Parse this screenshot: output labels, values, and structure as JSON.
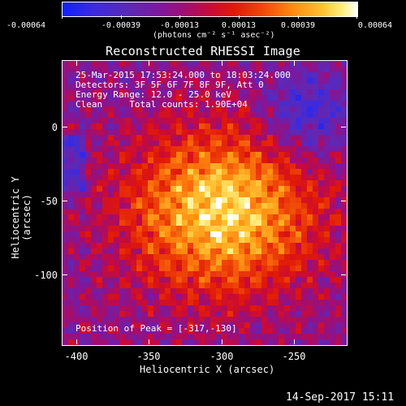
{
  "colorbar": {
    "tick_labels": [
      "-0.00064",
      "-0.00039",
      "-0.00013",
      "0.00013",
      "0.00039",
      "0.00064"
    ],
    "unit_label": "(photons cm⁻² s⁻¹ asec⁻²)"
  },
  "chart_data": {
    "type": "heatmap",
    "title": "Reconstructed RHESSI Image",
    "xlabel": "Heliocentric X (arcsec)",
    "ylabel": "Heliocentric Y (arcsec)",
    "xlim": [
      -410,
      -215
    ],
    "ylim": [
      -150,
      25
    ],
    "xticks": [
      -400,
      -350,
      -300,
      -250
    ],
    "yticks": [
      0,
      -50,
      -100
    ],
    "color_range": [
      -0.00064,
      0.00064
    ],
    "colormap": "blue-purple-red-orange-yellow-white",
    "peak_position": [
      -317,
      -130
    ],
    "grid": false
  },
  "annotations": {
    "time": "25-Mar-2015 17:53:24.000 to 18:03:24.000",
    "detectors": "Detectors: 3F 5F 6F 7F 8F 9F, Att 0",
    "energy": "Energy Range: 12.0 - 25.0 keV",
    "clean": "Clean     Total counts: 1.90E+04",
    "peak": "Position of Peak = [-317,-130]"
  },
  "footer": {
    "timestamp": "14-Sep-2017 15:11"
  }
}
